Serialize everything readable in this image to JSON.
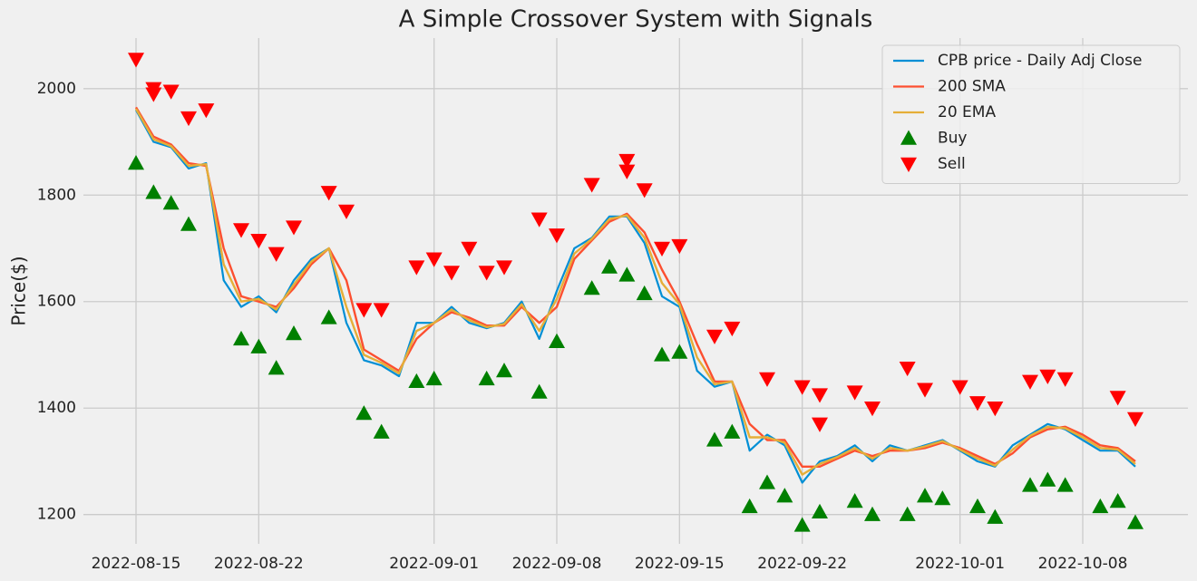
{
  "chart_data": {
    "type": "line",
    "title": "A Simple Crossover System with Signals",
    "y_label": "Price($)",
    "xlim": [
      "2022-08-12",
      "2022-10-14"
    ],
    "xticks": [
      "2022-08-15",
      "2022-08-22",
      "2022-09-01",
      "2022-09-08",
      "2022-09-15",
      "2022-09-22",
      "2022-10-01",
      "2022-10-08"
    ],
    "ylim": [
      1145,
      2095
    ],
    "yticks": [
      1200,
      1400,
      1600,
      1800,
      2000
    ],
    "grid": true,
    "legend": "upper right",
    "x": [
      "2022-08-15",
      "2022-08-16",
      "2022-08-17",
      "2022-08-18",
      "2022-08-19",
      "2022-08-20",
      "2022-08-21",
      "2022-08-22",
      "2022-08-23",
      "2022-08-24",
      "2022-08-25",
      "2022-08-26",
      "2022-08-27",
      "2022-08-28",
      "2022-08-29",
      "2022-08-30",
      "2022-08-31",
      "2022-09-01",
      "2022-09-02",
      "2022-09-03",
      "2022-09-04",
      "2022-09-05",
      "2022-09-06",
      "2022-09-07",
      "2022-09-08",
      "2022-09-09",
      "2022-09-10",
      "2022-09-11",
      "2022-09-12",
      "2022-09-13",
      "2022-09-14",
      "2022-09-15",
      "2022-09-16",
      "2022-09-17",
      "2022-09-18",
      "2022-09-19",
      "2022-09-20",
      "2022-09-21",
      "2022-09-22",
      "2022-09-23",
      "2022-09-24",
      "2022-09-25",
      "2022-09-26",
      "2022-09-27",
      "2022-09-28",
      "2022-09-29",
      "2022-09-30",
      "2022-10-01",
      "2022-10-02",
      "2022-10-03",
      "2022-10-04",
      "2022-10-05",
      "2022-10-06",
      "2022-10-07",
      "2022-10-08",
      "2022-10-09",
      "2022-10-10",
      "2022-10-11"
    ],
    "series": [
      {
        "name": "CPB price - Daily Adj Close",
        "color": "#008fd5",
        "values": [
          1960,
          1900,
          1890,
          1850,
          1860,
          1640,
          1590,
          1610,
          1580,
          1640,
          1680,
          1700,
          1560,
          1490,
          1480,
          1460,
          1560,
          1560,
          1590,
          1560,
          1550,
          1560,
          1600,
          1530,
          1620,
          1700,
          1720,
          1760,
          1760,
          1710,
          1610,
          1590,
          1470,
          1440,
          1450,
          1320,
          1350,
          1330,
          1260,
          1300,
          1310,
          1330,
          1300,
          1330,
          1320,
          1330,
          1340,
          1320,
          1300,
          1290,
          1330,
          1350,
          1370,
          1360,
          1340,
          1320,
          1320,
          1290
        ]
      },
      {
        "name": "200 SMA",
        "color": "#fc4f30",
        "values": [
          1965,
          1910,
          1895,
          1860,
          1855,
          1700,
          1610,
          1600,
          1590,
          1625,
          1670,
          1700,
          1640,
          1510,
          1490,
          1470,
          1530,
          1560,
          1580,
          1570,
          1555,
          1555,
          1590,
          1560,
          1590,
          1680,
          1715,
          1750,
          1765,
          1730,
          1660,
          1600,
          1520,
          1450,
          1450,
          1370,
          1340,
          1340,
          1290,
          1290,
          1305,
          1320,
          1310,
          1320,
          1320,
          1325,
          1335,
          1325,
          1310,
          1295,
          1315,
          1345,
          1360,
          1365,
          1350,
          1330,
          1325,
          1300
        ]
      },
      {
        "name": "20 EMA",
        "color": "#e5ae38",
        "values": [
          1962,
          1905,
          1892,
          1855,
          1858,
          1670,
          1600,
          1605,
          1585,
          1632,
          1675,
          1700,
          1590,
          1500,
          1485,
          1465,
          1545,
          1560,
          1585,
          1565,
          1552,
          1558,
          1595,
          1545,
          1605,
          1690,
          1718,
          1755,
          1762,
          1720,
          1635,
          1595,
          1495,
          1445,
          1450,
          1345,
          1345,
          1335,
          1275,
          1295,
          1308,
          1325,
          1305,
          1325,
          1320,
          1328,
          1338,
          1322,
          1305,
          1292,
          1322,
          1348,
          1365,
          1362,
          1345,
          1325,
          1322,
          1295
        ]
      }
    ],
    "signals": [
      {
        "name": "Buy",
        "color": "#008000",
        "marker": "^",
        "x": [
          "2022-08-15",
          "2022-08-16",
          "2022-08-17",
          "2022-08-18",
          "2022-08-21",
          "2022-08-22",
          "2022-08-23",
          "2022-08-24",
          "2022-08-26",
          "2022-08-28",
          "2022-08-29",
          "2022-08-31",
          "2022-09-01",
          "2022-09-04",
          "2022-09-05",
          "2022-09-07",
          "2022-09-08",
          "2022-09-10",
          "2022-09-11",
          "2022-09-12",
          "2022-09-13",
          "2022-09-14",
          "2022-09-15",
          "2022-09-17",
          "2022-09-18",
          "2022-09-19",
          "2022-09-20",
          "2022-09-21",
          "2022-09-22",
          "2022-09-23",
          "2022-09-25",
          "2022-09-26",
          "2022-09-28",
          "2022-09-29",
          "2022-09-30",
          "2022-10-02",
          "2022-10-03",
          "2022-10-05",
          "2022-10-06",
          "2022-10-07",
          "2022-10-09",
          "2022-10-10",
          "2022-10-11"
        ],
        "values": [
          1860,
          1805,
          1785,
          1745,
          1530,
          1515,
          1475,
          1540,
          1570,
          1390,
          1355,
          1450,
          1455,
          1455,
          1470,
          1430,
          1525,
          1625,
          1665,
          1650,
          1615,
          1500,
          1505,
          1340,
          1355,
          1215,
          1260,
          1235,
          1180,
          1205,
          1225,
          1200,
          1200,
          1235,
          1230,
          1215,
          1195,
          1255,
          1265,
          1255,
          1215,
          1225,
          1185
        ]
      },
      {
        "name": "Sell",
        "color": "#ff0000",
        "marker": "v",
        "x": [
          "2022-08-15",
          "2022-08-16",
          "2022-08-16",
          "2022-08-17",
          "2022-08-18",
          "2022-08-19",
          "2022-08-21",
          "2022-08-22",
          "2022-08-23",
          "2022-08-24",
          "2022-08-26",
          "2022-08-27",
          "2022-08-28",
          "2022-08-29",
          "2022-08-31",
          "2022-09-01",
          "2022-09-02",
          "2022-09-03",
          "2022-09-04",
          "2022-09-05",
          "2022-09-07",
          "2022-09-08",
          "2022-09-10",
          "2022-09-12",
          "2022-09-12",
          "2022-09-13",
          "2022-09-14",
          "2022-09-15",
          "2022-09-17",
          "2022-09-18",
          "2022-09-20",
          "2022-09-22",
          "2022-09-23",
          "2022-09-23",
          "2022-09-25",
          "2022-09-26",
          "2022-09-28",
          "2022-09-29",
          "2022-10-01",
          "2022-10-02",
          "2022-10-03",
          "2022-10-05",
          "2022-10-06",
          "2022-10-07",
          "2022-10-10",
          "2022-10-11"
        ],
        "values": [
          2055,
          2000,
          1990,
          1995,
          1945,
          1960,
          1735,
          1715,
          1690,
          1740,
          1805,
          1770,
          1585,
          1585,
          1665,
          1680,
          1655,
          1700,
          1655,
          1665,
          1755,
          1725,
          1820,
          1865,
          1845,
          1810,
          1700,
          1705,
          1535,
          1550,
          1455,
          1440,
          1370,
          1425,
          1430,
          1400,
          1475,
          1435,
          1440,
          1410,
          1400,
          1450,
          1460,
          1455,
          1420,
          1380
        ]
      }
    ]
  }
}
